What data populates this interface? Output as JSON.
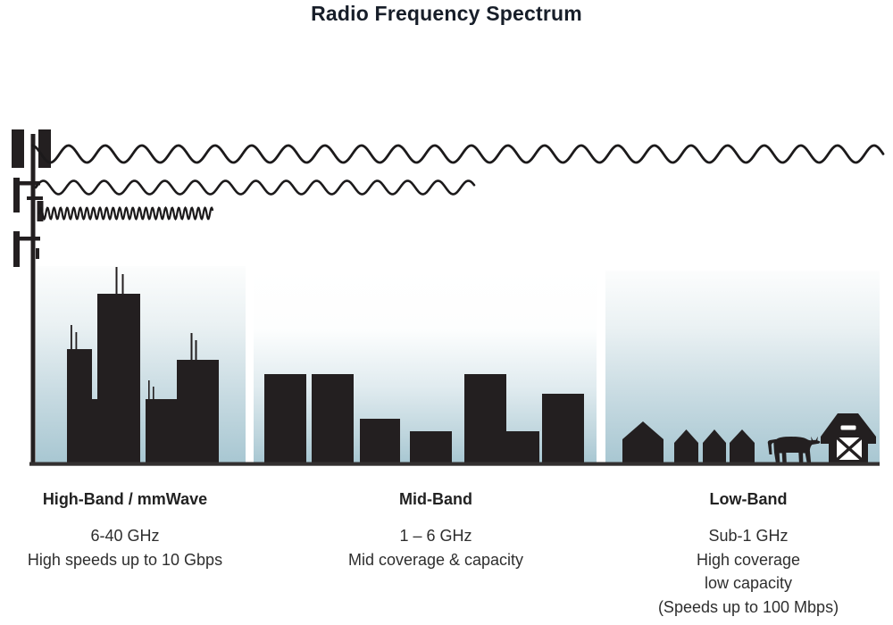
{
  "title": "Radio Frequency Spectrum",
  "bands": [
    {
      "id": "high-band",
      "label": "High-Band / mmWave",
      "details": [
        "6-40 GHz",
        "High speeds up to 10 Gbps"
      ]
    },
    {
      "id": "mid-band",
      "label": "Mid-Band",
      "details": [
        "1 – 6 GHz",
        "Mid coverage & capacity"
      ]
    },
    {
      "id": "low-band",
      "label": "Low-Band",
      "details": [
        "Sub-1 GHz",
        "High coverage",
        "low capacity",
        "(Speeds up to 100 Mbps)"
      ]
    }
  ],
  "illustration": {
    "tower_icon": "cell-tower-icon",
    "wave_icons": [
      "long-wavelength-wave-icon",
      "medium-wavelength-wave-icon",
      "short-wavelength-wave-icon"
    ],
    "scene_icons": [
      "tall-city-skyline-icon",
      "mid-city-skyline-icon",
      "farm-scene-icon"
    ],
    "colors": {
      "ink": "#231f20",
      "sky_gradient_top": "#ffffff",
      "sky_gradient_bottom": "#a8c7d2",
      "ground_line": "#333030",
      "title_text": "#171e29",
      "body_text": "#2e2e2e"
    }
  }
}
